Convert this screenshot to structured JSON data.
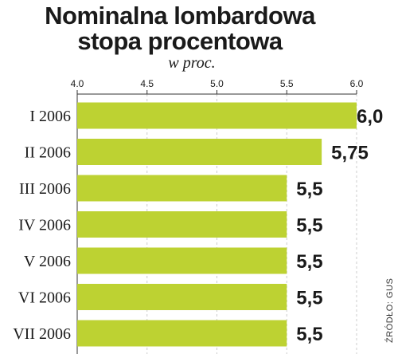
{
  "header": {
    "title_line1": "Nominalna lombardowa",
    "title_line2": "stopa procentowa",
    "unit": "w proc."
  },
  "source": "ŹRÓDŁO: GUS",
  "colors": {
    "bar": "#bdd232",
    "text": "#1a1a1a",
    "grid": "#cccccc"
  },
  "chart_data": {
    "type": "bar",
    "orientation": "horizontal",
    "title": "Nominalna lombardowa stopa procentowa",
    "subtitle": "w proc.",
    "categories": [
      "I 2006",
      "II 2006",
      "III 2006",
      "IV 2006",
      "V 2006",
      "VI 2006",
      "VII 2006"
    ],
    "values": [
      6.0,
      5.75,
      5.5,
      5.5,
      5.5,
      5.5,
      5.5
    ],
    "value_labels": [
      "6,0",
      "5,75",
      "5,5",
      "5,5",
      "5,5",
      "5,5",
      "5,5"
    ],
    "xlim": [
      4.0,
      6.0
    ],
    "xticks": [
      "4.0",
      "4.5",
      "5.0",
      "5.5",
      "6.0"
    ],
    "xtick_values": [
      4.0,
      4.5,
      5.0,
      5.5,
      6.0
    ],
    "grid": true,
    "xlabel": "",
    "ylabel": ""
  }
}
